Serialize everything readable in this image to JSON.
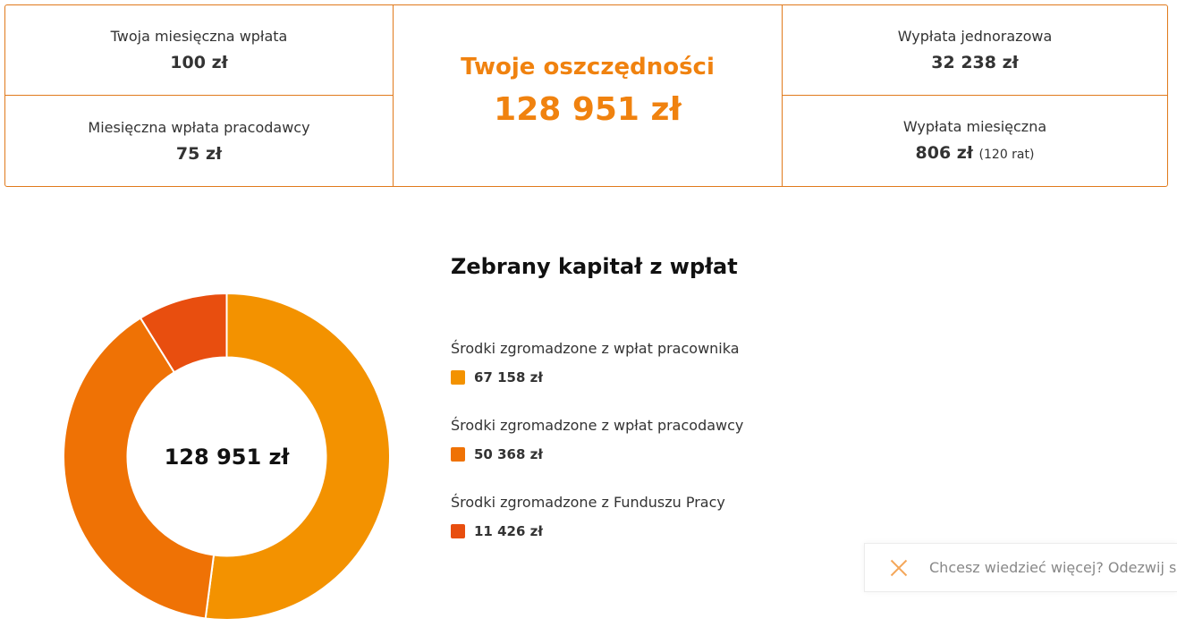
{
  "summary": {
    "own_monthly": {
      "label": "Twoja miesięczna wpłata",
      "value": "100 zł"
    },
    "employer_monthly": {
      "label": "Miesięczna wpłata pracodawcy",
      "value": "75 zł"
    },
    "savings": {
      "label": "Twoje oszczędności",
      "value": "128 951 zł"
    },
    "lump_sum": {
      "label": "Wypłata jednorazowa",
      "value": "32 238 zł"
    },
    "monthly_payout": {
      "label": "Wypłata miesięczna",
      "value": "806 zł",
      "note": "(120 rat)"
    }
  },
  "chart_data": {
    "type": "pie",
    "title": "Zebrany kapitał z wpłat",
    "center_label": "128 951 zł",
    "slices": [
      {
        "label": "Środki zgromadzone z wpłat pracownika",
        "value": 67158,
        "display": "67 158 zł",
        "color": "#f39200"
      },
      {
        "label": "Środki zgromadzone z wpłat pracodawcy",
        "value": 50368,
        "display": "50 368 zł",
        "color": "#ef7205"
      },
      {
        "label": "Środki zgromadzone z Funduszu Pracy",
        "value": 11426,
        "display": "11 426 zł",
        "color": "#e84e0f"
      }
    ]
  },
  "contact": {
    "text": "Chcesz wiedzieć więcej? Odezwij się",
    "close_icon": "close-icon"
  },
  "colors": {
    "accent": "#f0820f",
    "border": "#e07a1c"
  }
}
